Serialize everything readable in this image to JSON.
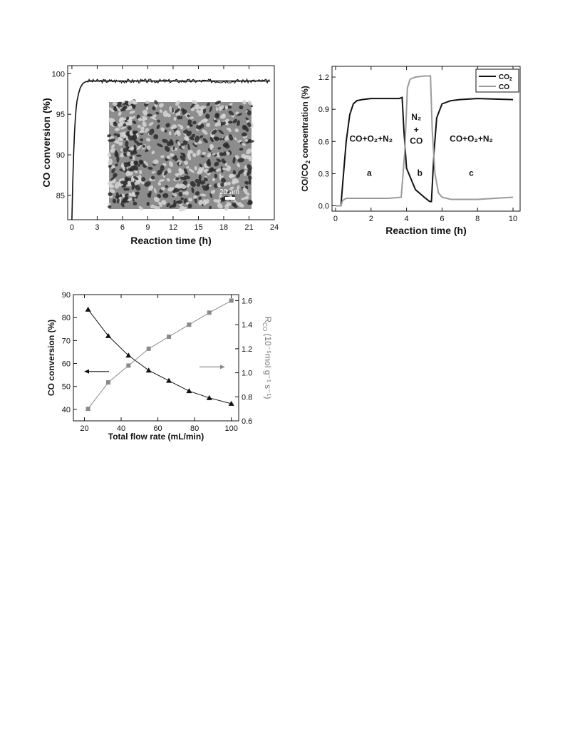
{
  "chart_data": [
    {
      "type": "line",
      "title": "",
      "xlabel": "Reaction time (h)",
      "ylabel": "CO conversion (%)",
      "xlim": [
        -0.5,
        24
      ],
      "ylim": [
        82,
        101
      ],
      "xticks": [
        0,
        3,
        6,
        9,
        12,
        15,
        18,
        21,
        24
      ],
      "yticks": [
        85,
        90,
        95,
        100
      ],
      "grid": false,
      "series": [
        {
          "name": "",
          "x": [
            0.0,
            0.1,
            0.2,
            0.3,
            0.4,
            0.5,
            0.6,
            0.8,
            1.0,
            1.3,
            1.6,
            2.0,
            2.5,
            3,
            6,
            9,
            12,
            15,
            18,
            21,
            23.5
          ],
          "y": [
            82.0,
            86.5,
            90.0,
            92.6,
            94.4,
            95.7,
            96.6,
            97.6,
            98.3,
            98.8,
            99.0,
            99.1,
            99.1,
            99.1,
            99.1,
            99.1,
            99.1,
            99.1,
            99.1,
            99.1,
            99.1
          ]
        }
      ],
      "inset": {
        "description_label": "20 nm"
      }
    },
    {
      "type": "line",
      "title": "",
      "xlabel": "Reaction time (h)",
      "ylabel": "CO/CO",
      "ylabel_sub": "2",
      "ylabel_rest": " concentration (%)",
      "xlim": [
        -0.2,
        10.4
      ],
      "ylim": [
        -0.05,
        1.3
      ],
      "xticks": [
        0,
        2,
        4,
        6,
        8,
        10
      ],
      "yticks": [
        0.0,
        0.3,
        0.6,
        0.9,
        1.2
      ],
      "yticklabels": [
        "0.0",
        "0.3",
        "0.6",
        "0.9",
        "1.2"
      ],
      "grid": false,
      "legend": {
        "placement": "top-right",
        "entries": [
          {
            "label": "CO",
            "sub": "2",
            "color": "#111111"
          },
          {
            "label": "CO",
            "sub": "",
            "color": "#9a9a9a"
          }
        ]
      },
      "annotations": [
        {
          "text": "CO+O₂+N₂",
          "x": 2.0,
          "y": 0.6
        },
        {
          "text": "a",
          "x": 1.9,
          "y": 0.28
        },
        {
          "text": "N₂",
          "x": 4.55,
          "y": 0.8
        },
        {
          "text": "+",
          "x": 4.55,
          "y": 0.68
        },
        {
          "text": "CO",
          "x": 4.55,
          "y": 0.58
        },
        {
          "text": "b",
          "x": 4.75,
          "y": 0.28
        },
        {
          "text": "CO+O₂+N₂",
          "x": 7.65,
          "y": 0.6
        },
        {
          "text": "c",
          "x": 7.65,
          "y": 0.28
        }
      ],
      "series": [
        {
          "name": "CO₂",
          "color": "#111111",
          "x": [
            0,
            0.3,
            0.4,
            0.6,
            0.8,
            1.0,
            1.2,
            1.5,
            2.0,
            3.0,
            3.6,
            3.75,
            3.85,
            4.0,
            4.5,
            5.0,
            5.3,
            5.4,
            5.55,
            5.7,
            6.0,
            6.5,
            7.0,
            8.0,
            9.0,
            10.0
          ],
          "y": [
            0.0,
            0.0,
            0.2,
            0.6,
            0.85,
            0.95,
            0.98,
            0.99,
            1.0,
            1.0,
            1.0,
            1.01,
            0.7,
            0.35,
            0.15,
            0.08,
            0.04,
            0.04,
            0.5,
            0.82,
            0.95,
            0.98,
            0.99,
            1.0,
            0.995,
            0.99
          ]
        },
        {
          "name": "CO",
          "color": "#9a9a9a",
          "x": [
            0,
            0.3,
            0.4,
            0.6,
            1.0,
            2.0,
            3.0,
            3.7,
            3.9,
            4.05,
            4.2,
            4.5,
            5.0,
            5.35,
            5.45,
            5.6,
            5.8,
            6.0,
            6.5,
            7.0,
            8.0,
            9.0,
            10.0
          ],
          "y": [
            0.0,
            0.0,
            0.05,
            0.07,
            0.07,
            0.07,
            0.07,
            0.08,
            0.5,
            1.1,
            1.18,
            1.2,
            1.21,
            1.21,
            0.7,
            0.3,
            0.12,
            0.08,
            0.06,
            0.06,
            0.06,
            0.07,
            0.08
          ]
        }
      ]
    },
    {
      "type": "scatter",
      "title": "",
      "xlabel": "Total flow rate (mL/min)",
      "ylabel": "CO conversion (%)",
      "y2label_main": "R",
      "y2label_sub": "CO",
      "y2label_rest": " (10⁻⁵mol g⁻¹ s⁻¹)",
      "xlim": [
        14,
        104
      ],
      "ylim": [
        35,
        90
      ],
      "y2lim": [
        0.6,
        1.65
      ],
      "xticks": [
        20,
        40,
        60,
        80,
        100
      ],
      "yticks": [
        40,
        50,
        60,
        70,
        80,
        90
      ],
      "y2ticks": [
        0.6,
        0.8,
        1.0,
        1.2,
        1.4,
        1.6
      ],
      "y2ticklabels": [
        "0.6",
        "0.8",
        "1.0",
        "1.2",
        "1.4",
        "1.6"
      ],
      "grid": false,
      "series": [
        {
          "name": "",
          "axis": "left",
          "marker": "triangle",
          "color": "#111111",
          "x": [
            22,
            33,
            44,
            55,
            66,
            77,
            88,
            100
          ],
          "y": [
            83.5,
            72,
            63.5,
            57,
            52.5,
            48,
            45,
            42.5
          ]
        },
        {
          "name": "",
          "axis": "right",
          "marker": "square",
          "color": "#8a8a8a",
          "x": [
            22,
            33,
            44,
            55,
            66,
            77,
            88,
            100
          ],
          "y": [
            0.7,
            0.92,
            1.06,
            1.2,
            1.3,
            1.4,
            1.5,
            1.6
          ]
        }
      ],
      "arrows": [
        {
          "direction": "left",
          "points_to": "left-axis",
          "color": "#111111"
        },
        {
          "direction": "right",
          "points_to": "right-axis",
          "color": "#8a8a8a"
        }
      ]
    }
  ]
}
